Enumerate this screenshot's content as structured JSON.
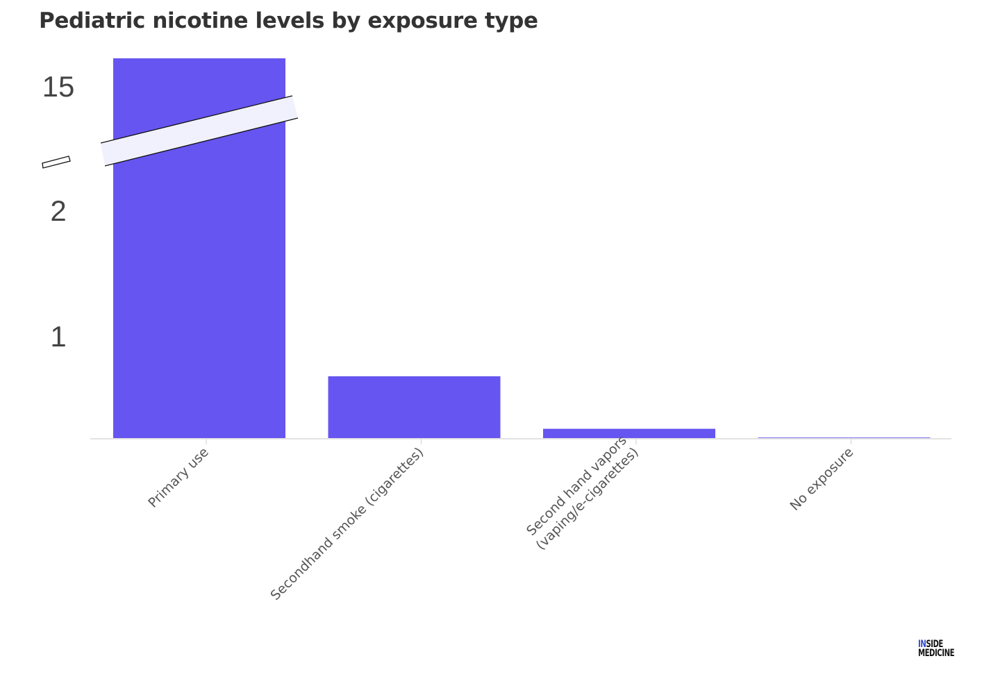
{
  "chart_data": {
    "type": "bar",
    "title": "Pediatric nicotine levels by exposure type",
    "xlabel": "",
    "ylabel": "",
    "categories": [
      "Primary use",
      "Secondhand smoke (cigarettes)",
      "Second hand vapors (vaping/e-cigarettes)",
      "No exposure"
    ],
    "category_label_lines": [
      [
        "Primary use"
      ],
      [
        "Secondhand smoke (cigarettes)"
      ],
      [
        "Second hand vapors",
        "(vaping/e-cigarettes)"
      ],
      [
        "No exposure"
      ]
    ],
    "values": [
      16,
      0.5,
      0.08,
      0.01
    ],
    "y_ticks": [
      {
        "label": "1",
        "value": 1
      },
      {
        "label": "2",
        "value": 2
      },
      {
        "label": "15",
        "value": 15
      }
    ],
    "axis_break": {
      "from": 2,
      "to": 15
    },
    "bar_color": "#6655f0",
    "grid": false,
    "legend": "none"
  },
  "logo": {
    "part1_accent": "IN",
    "part1_rest": "SIDE",
    "part2": "MEDICINE",
    "accent_color": "#2f45c9"
  }
}
